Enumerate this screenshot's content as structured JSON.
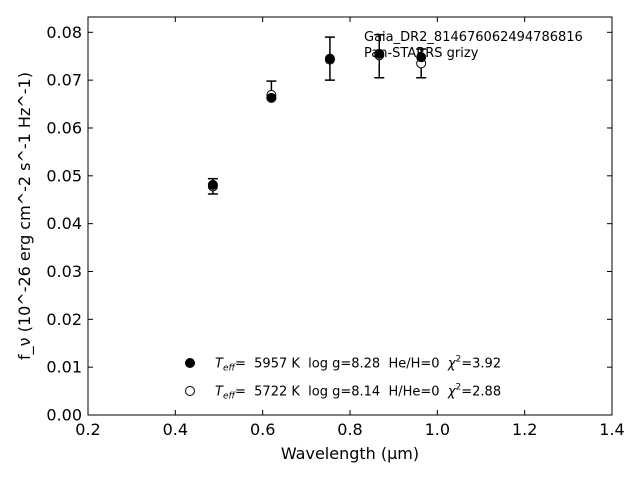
{
  "chart_data": {
    "type": "scatter",
    "title_lines": [
      "Gaia_DR2_814676062494786816",
      "Pan-STARRS grizy"
    ],
    "xlabel": "Wavelength (μm)",
    "ylabel": "f_ν (10^-26 erg cm^-2 s^-1 Hz^-1)",
    "xlim": [
      0.2,
      1.4
    ],
    "ylim": [
      0.0,
      0.0832
    ],
    "xticks": [
      0.2,
      0.4,
      0.6,
      0.8,
      1.0,
      1.2,
      1.4
    ],
    "xtick_labels": [
      "0.2",
      "0.4",
      "0.6",
      "0.8",
      "1.0",
      "1.2",
      "1.4"
    ],
    "yticks": [
      0.0,
      0.01,
      0.02,
      0.03,
      0.04,
      0.05,
      0.06,
      0.07,
      0.08
    ],
    "ytick_labels": [
      "0.00",
      "0.01",
      "0.02",
      "0.03",
      "0.04",
      "0.05",
      "0.06",
      "0.07",
      "0.08"
    ],
    "grid": false,
    "legend_position": "lower-center",
    "observed": {
      "x": [
        0.486,
        0.62,
        0.754,
        0.867,
        0.963
      ],
      "y": [
        0.0478,
        0.068,
        0.0745,
        0.075,
        0.0735
      ],
      "err": [
        0.0016,
        0.0018,
        0.0045,
        0.0045,
        0.003
      ]
    },
    "series": [
      {
        "name": "Teff= 5957 K log g=8.28 He/H=0 χ²=3.92",
        "legend_parts": {
          "label": "T",
          "sub": "eff",
          "text": "=  5957 K  log g=8.28  He/H=0  ",
          "chi": "χ",
          "sup": "2",
          "value": "=3.92"
        },
        "marker": "filled-circle",
        "color": "#000000",
        "x": [
          0.486,
          0.62,
          0.754,
          0.867,
          0.963
        ],
        "y": [
          0.0481,
          0.0663,
          0.0745,
          0.0755,
          0.0748
        ]
      },
      {
        "name": "Teff= 5722 K log g=8.14 H/He=0 χ²=2.88",
        "legend_parts": {
          "label": "T",
          "sub": "eff",
          "text": "=  5722 K  log g=8.14  H/He=0  ",
          "chi": "χ",
          "sup": "2",
          "value": "=2.88"
        },
        "marker": "open-circle",
        "color": "#000000",
        "x": [
          0.486,
          0.62,
          0.754,
          0.867,
          0.963
        ],
        "y": [
          0.0478,
          0.0669,
          0.0743,
          0.0752,
          0.0735
        ]
      }
    ]
  }
}
